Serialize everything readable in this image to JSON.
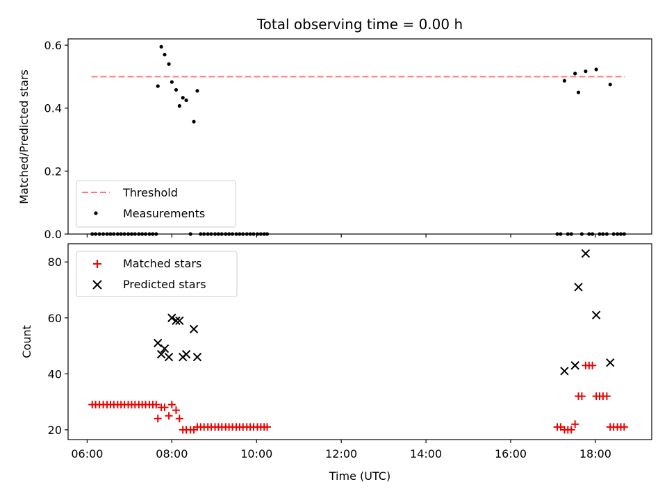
{
  "chart_data": {
    "title": "Total observing time = 0.00 h",
    "xlabel": "Time (UTC)",
    "x_ticks": [
      "06:00",
      "08:00",
      "10:00",
      "12:00",
      "14:00",
      "16:00",
      "18:00"
    ],
    "x_tick_hours": [
      6,
      8,
      10,
      12,
      14,
      16,
      18
    ],
    "xlim_hours": [
      5.55,
      19.33
    ],
    "top": {
      "type": "scatter",
      "ylabel": "Matched/Predicted stars",
      "ylim": [
        0,
        0.62
      ],
      "y_ticks": [
        "0.0",
        "0.2",
        "0.4",
        "0.6"
      ],
      "y_tick_values": [
        0,
        0.2,
        0.4,
        0.6
      ],
      "legend_position": "lower-left",
      "threshold": {
        "name": "Threshold",
        "value": 0.5,
        "x_range_hours": [
          6.1,
          18.7
        ],
        "color": "#ff7777"
      },
      "measurements": {
        "name": "Measurements",
        "color": "#000000",
        "points": [
          [
            6.12,
            0
          ],
          [
            6.2,
            0
          ],
          [
            6.29,
            0
          ],
          [
            6.38,
            0
          ],
          [
            6.47,
            0
          ],
          [
            6.55,
            0
          ],
          [
            6.63,
            0
          ],
          [
            6.72,
            0
          ],
          [
            6.8,
            0
          ],
          [
            6.88,
            0
          ],
          [
            6.97,
            0
          ],
          [
            7.05,
            0
          ],
          [
            7.13,
            0
          ],
          [
            7.22,
            0
          ],
          [
            7.3,
            0
          ],
          [
            7.38,
            0
          ],
          [
            7.47,
            0
          ],
          [
            7.55,
            0
          ],
          [
            7.63,
            0
          ],
          [
            7.67,
            0.47
          ],
          [
            7.75,
            0.595
          ],
          [
            7.83,
            0.57
          ],
          [
            7.93,
            0.54
          ],
          [
            8.0,
            0.483
          ],
          [
            8.1,
            0.458
          ],
          [
            8.18,
            0.407
          ],
          [
            8.26,
            0.433
          ],
          [
            8.34,
            0.425
          ],
          [
            8.44,
            0
          ],
          [
            8.52,
            0.357
          ],
          [
            8.6,
            0.455
          ],
          [
            8.68,
            0
          ],
          [
            8.76,
            0
          ],
          [
            8.85,
            0
          ],
          [
            8.93,
            0
          ],
          [
            9.02,
            0
          ],
          [
            9.1,
            0
          ],
          [
            9.18,
            0
          ],
          [
            9.27,
            0
          ],
          [
            9.35,
            0
          ],
          [
            9.43,
            0
          ],
          [
            9.52,
            0
          ],
          [
            9.6,
            0
          ],
          [
            9.68,
            0
          ],
          [
            9.77,
            0
          ],
          [
            9.85,
            0
          ],
          [
            9.93,
            0
          ],
          [
            10.02,
            0
          ],
          [
            10.1,
            0
          ],
          [
            10.18,
            0
          ],
          [
            10.25,
            0
          ],
          [
            17.1,
            0
          ],
          [
            17.18,
            0
          ],
          [
            17.27,
            0.487
          ],
          [
            17.35,
            0
          ],
          [
            17.43,
            0
          ],
          [
            17.52,
            0.51
          ],
          [
            17.6,
            0.45
          ],
          [
            17.68,
            0
          ],
          [
            17.77,
            0.517
          ],
          [
            17.85,
            0
          ],
          [
            17.93,
            0
          ],
          [
            18.02,
            0.523
          ],
          [
            18.1,
            0
          ],
          [
            18.18,
            0
          ],
          [
            18.27,
            0
          ],
          [
            18.35,
            0.475
          ],
          [
            18.43,
            0
          ],
          [
            18.52,
            0
          ],
          [
            18.6,
            0
          ],
          [
            18.68,
            0
          ]
        ]
      }
    },
    "bottom": {
      "type": "scatter",
      "ylabel": "Count",
      "ylim": [
        16.5,
        86.5
      ],
      "y_ticks": [
        "20",
        "40",
        "60",
        "80"
      ],
      "y_tick_values": [
        20,
        40,
        60,
        80
      ],
      "legend_position": "upper-left",
      "series": [
        {
          "name": "Matched stars",
          "marker": "plus",
          "color": "#ee0000",
          "points": [
            [
              6.12,
              29
            ],
            [
              6.2,
              29
            ],
            [
              6.29,
              29
            ],
            [
              6.38,
              29
            ],
            [
              6.47,
              29
            ],
            [
              6.55,
              29
            ],
            [
              6.63,
              29
            ],
            [
              6.72,
              29
            ],
            [
              6.8,
              29
            ],
            [
              6.88,
              29
            ],
            [
              6.97,
              29
            ],
            [
              7.05,
              29
            ],
            [
              7.13,
              29
            ],
            [
              7.22,
              29
            ],
            [
              7.3,
              29
            ],
            [
              7.38,
              29
            ],
            [
              7.47,
              29
            ],
            [
              7.55,
              29
            ],
            [
              7.63,
              29
            ],
            [
              7.67,
              24
            ],
            [
              7.75,
              28
            ],
            [
              7.83,
              28
            ],
            [
              7.93,
              25
            ],
            [
              8.0,
              29
            ],
            [
              8.1,
              27
            ],
            [
              8.18,
              24
            ],
            [
              8.26,
              20
            ],
            [
              8.34,
              20
            ],
            [
              8.44,
              20
            ],
            [
              8.52,
              20
            ],
            [
              8.6,
              21
            ],
            [
              8.68,
              21
            ],
            [
              8.76,
              21
            ],
            [
              8.85,
              21
            ],
            [
              8.93,
              21
            ],
            [
              9.02,
              21
            ],
            [
              9.1,
              21
            ],
            [
              9.18,
              21
            ],
            [
              9.27,
              21
            ],
            [
              9.35,
              21
            ],
            [
              9.43,
              21
            ],
            [
              9.52,
              21
            ],
            [
              9.6,
              21
            ],
            [
              9.68,
              21
            ],
            [
              9.77,
              21
            ],
            [
              9.85,
              21
            ],
            [
              9.93,
              21
            ],
            [
              10.02,
              21
            ],
            [
              10.1,
              21
            ],
            [
              10.18,
              21
            ],
            [
              10.25,
              21
            ],
            [
              17.1,
              21
            ],
            [
              17.18,
              21
            ],
            [
              17.27,
              20
            ],
            [
              17.35,
              20
            ],
            [
              17.43,
              20
            ],
            [
              17.52,
              22
            ],
            [
              17.6,
              32
            ],
            [
              17.68,
              32
            ],
            [
              17.77,
              43
            ],
            [
              17.85,
              43
            ],
            [
              17.93,
              43
            ],
            [
              18.02,
              32
            ],
            [
              18.1,
              32
            ],
            [
              18.18,
              32
            ],
            [
              18.27,
              32
            ],
            [
              18.35,
              21
            ],
            [
              18.43,
              21
            ],
            [
              18.52,
              21
            ],
            [
              18.6,
              21
            ],
            [
              18.68,
              21
            ]
          ]
        },
        {
          "name": "Predicted stars",
          "marker": "x",
          "color": "#000000",
          "points": [
            [
              7.67,
              51
            ],
            [
              7.75,
              47
            ],
            [
              7.83,
              49
            ],
            [
              7.93,
              46
            ],
            [
              8.0,
              60
            ],
            [
              8.1,
              59
            ],
            [
              8.18,
              59
            ],
            [
              8.26,
              46
            ],
            [
              8.34,
              47
            ],
            [
              8.52,
              56
            ],
            [
              8.6,
              46
            ],
            [
              17.27,
              41
            ],
            [
              17.52,
              43
            ],
            [
              17.6,
              71
            ],
            [
              17.77,
              83
            ],
            [
              18.02,
              61
            ],
            [
              18.35,
              44
            ]
          ]
        }
      ]
    }
  }
}
